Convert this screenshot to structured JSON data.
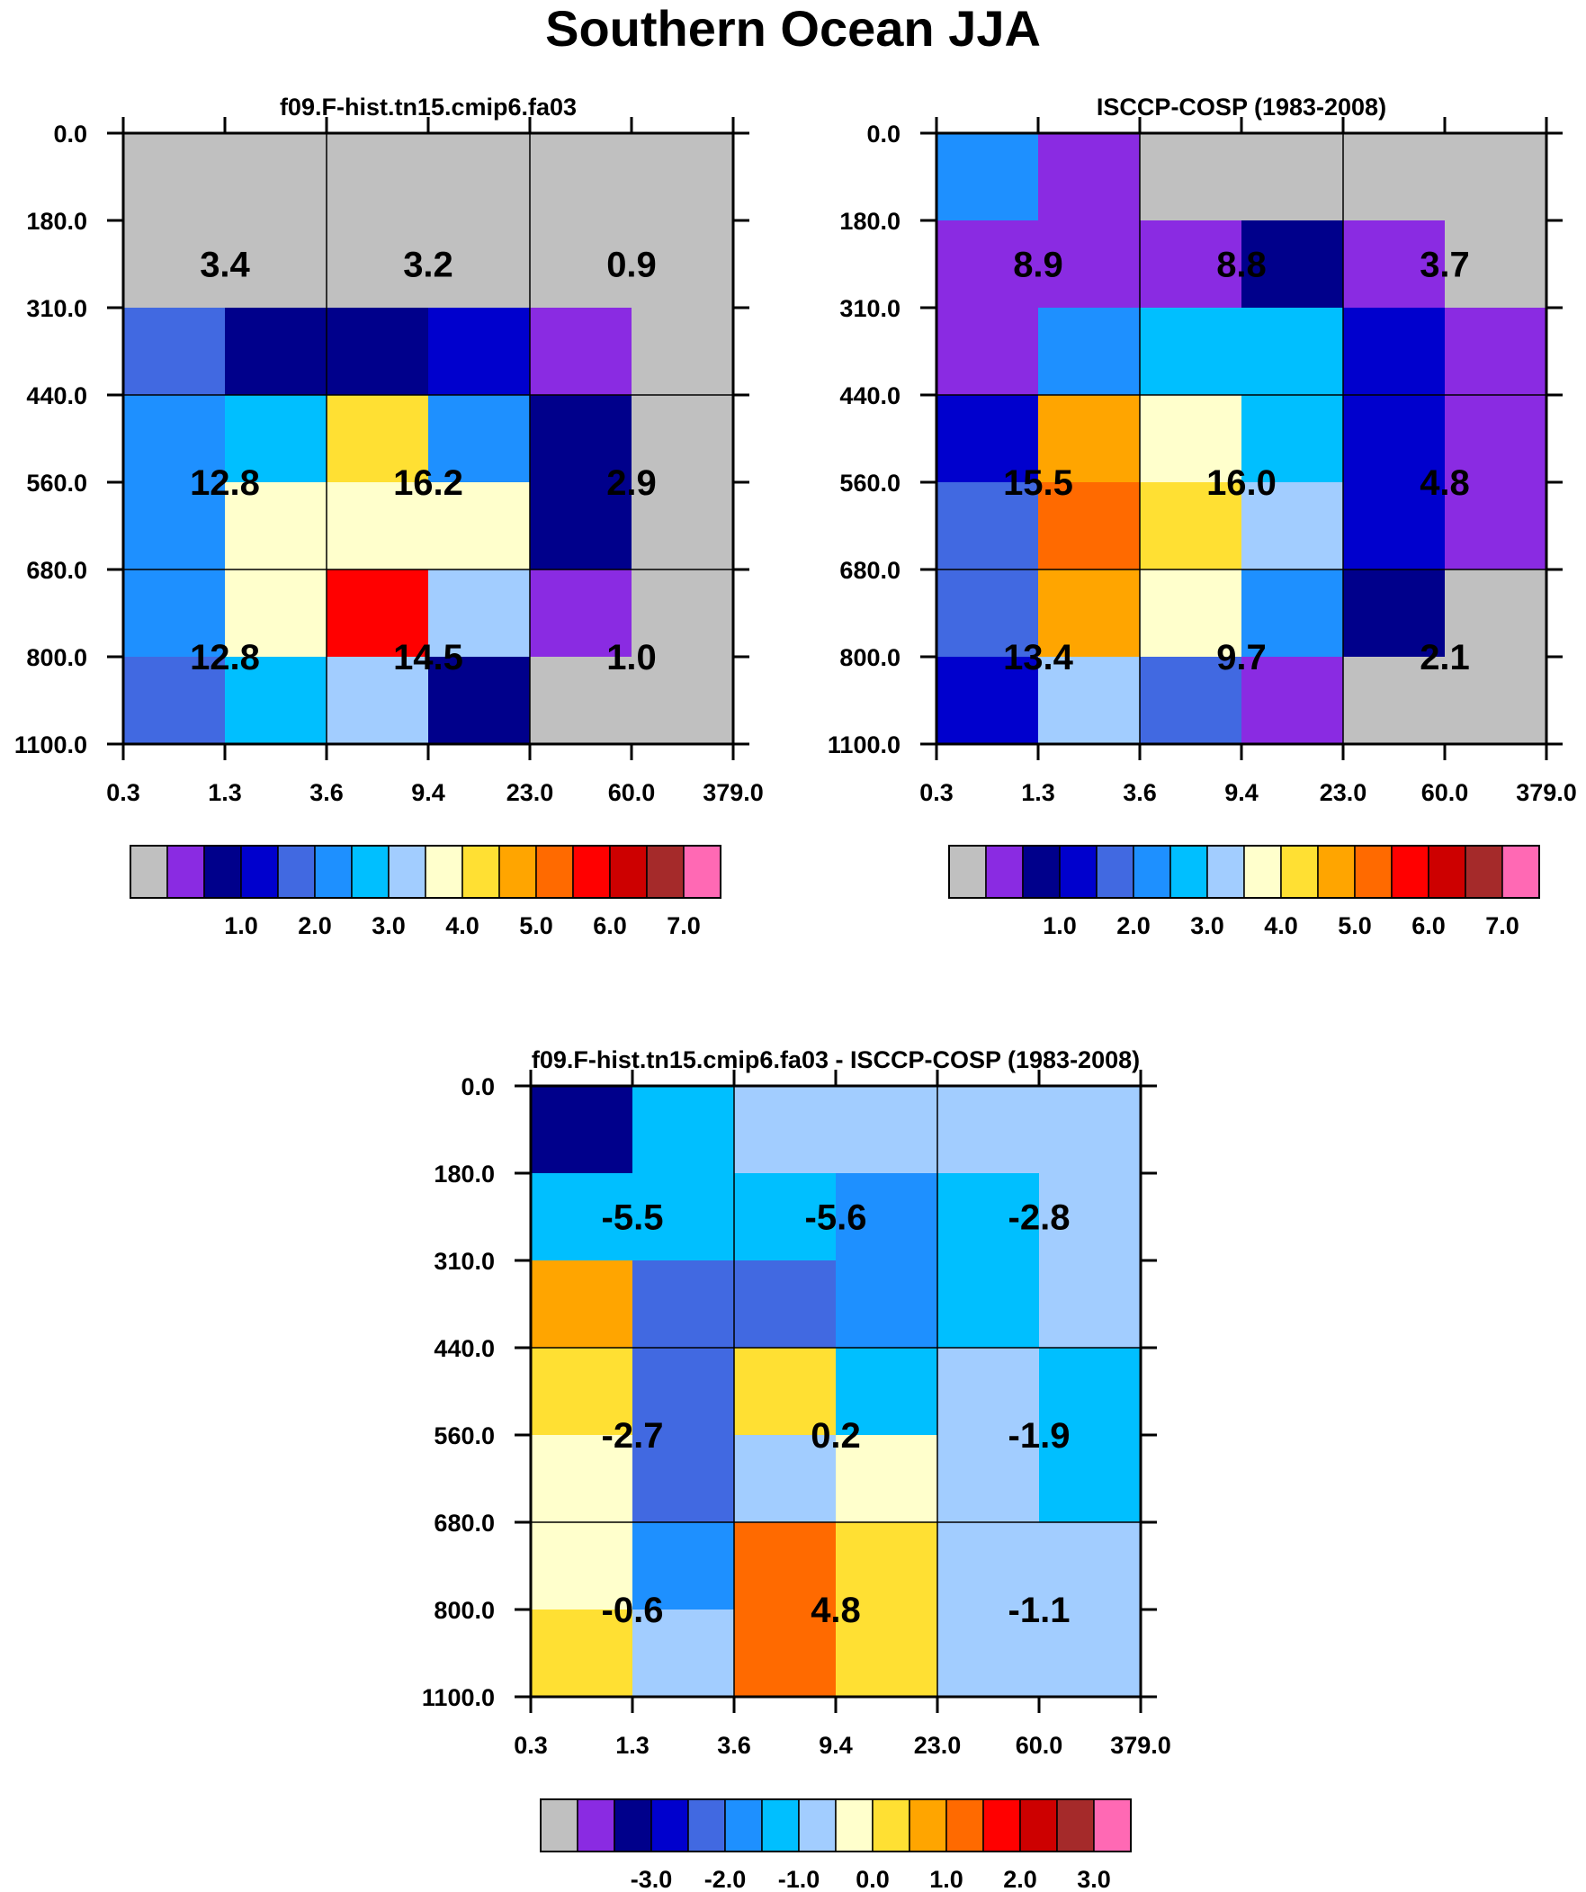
{
  "title": "Southern Ocean JJA",
  "colors": {
    "palette": [
      "#c0c0c0",
      "#8a2be2",
      "#00008b",
      "#0000cd",
      "#4169e1",
      "#1e90ff",
      "#00bfff",
      "#a2cdff",
      "#ffffcc",
      "#ffe033",
      "#ffa500",
      "#ff6a00",
      "#ff0000",
      "#cd0000",
      "#a52a2a",
      "#ff69b4"
    ]
  },
  "chart_data": [
    {
      "type": "heatmap",
      "title": "f09.F-hist.tn15.cmip6.fa03",
      "x_ticks": [
        "0.3",
        "1.3",
        "3.6",
        "9.4",
        "23.0",
        "60.0",
        "379.0"
      ],
      "y_ticks": [
        "0.0",
        "180.0",
        "310.0",
        "440.0",
        "560.0",
        "680.0",
        "800.0",
        "1100.0"
      ],
      "cell_color_index": [
        [
          0,
          0,
          0,
          0,
          0,
          0
        ],
        [
          0,
          0,
          0,
          0,
          0,
          0
        ],
        [
          4,
          2,
          2,
          3,
          1,
          0
        ],
        [
          5,
          6,
          9,
          5,
          2,
          0
        ],
        [
          5,
          8,
          8,
          8,
          2,
          0
        ],
        [
          5,
          8,
          12,
          7,
          1,
          0
        ],
        [
          4,
          6,
          7,
          2,
          0,
          0
        ]
      ],
      "annotations": [
        {
          "row": 0,
          "col": 0,
          "text": "3.4"
        },
        {
          "row": 0,
          "col": 1,
          "text": "3.2"
        },
        {
          "row": 0,
          "col": 2,
          "text": "0.9"
        },
        {
          "row": 1,
          "col": 0,
          "text": "12.8"
        },
        {
          "row": 1,
          "col": 1,
          "text": "16.2"
        },
        {
          "row": 1,
          "col": 2,
          "text": "2.9"
        },
        {
          "row": 2,
          "col": 0,
          "text": "12.8"
        },
        {
          "row": 2,
          "col": 1,
          "text": "14.5"
        },
        {
          "row": 2,
          "col": 2,
          "text": "1.0"
        }
      ],
      "colorbar_labels": [
        "1.0",
        "2.0",
        "3.0",
        "4.0",
        "5.0",
        "6.0",
        "7.0"
      ]
    },
    {
      "type": "heatmap",
      "title": "ISCCP-COSP (1983-2008)",
      "x_ticks": [
        "0.3",
        "1.3",
        "3.6",
        "9.4",
        "23.0",
        "60.0",
        "379.0"
      ],
      "y_ticks": [
        "0.0",
        "180.0",
        "310.0",
        "440.0",
        "560.0",
        "680.0",
        "800.0",
        "1100.0"
      ],
      "cell_color_index": [
        [
          5,
          1,
          0,
          0,
          0,
          0
        ],
        [
          1,
          1,
          1,
          2,
          1,
          0
        ],
        [
          1,
          5,
          6,
          6,
          3,
          1
        ],
        [
          3,
          10,
          8,
          6,
          3,
          1
        ],
        [
          4,
          11,
          9,
          7,
          3,
          1
        ],
        [
          4,
          10,
          8,
          5,
          2,
          0
        ],
        [
          3,
          7,
          4,
          1,
          0,
          0
        ]
      ],
      "annotations": [
        {
          "row": 0,
          "col": 0,
          "text": "8.9"
        },
        {
          "row": 0,
          "col": 1,
          "text": "8.8"
        },
        {
          "row": 0,
          "col": 2,
          "text": "3.7"
        },
        {
          "row": 1,
          "col": 0,
          "text": "15.5"
        },
        {
          "row": 1,
          "col": 1,
          "text": "16.0"
        },
        {
          "row": 1,
          "col": 2,
          "text": "4.8"
        },
        {
          "row": 2,
          "col": 0,
          "text": "13.4"
        },
        {
          "row": 2,
          "col": 1,
          "text": "9.7"
        },
        {
          "row": 2,
          "col": 2,
          "text": "2.1"
        }
      ],
      "colorbar_labels": [
        "1.0",
        "2.0",
        "3.0",
        "4.0",
        "5.0",
        "6.0",
        "7.0"
      ]
    },
    {
      "type": "heatmap",
      "title": "f09.F-hist.tn15.cmip6.fa03 - ISCCP-COSP (1983-2008)",
      "x_ticks": [
        "0.3",
        "1.3",
        "3.6",
        "9.4",
        "23.0",
        "60.0",
        "379.0"
      ],
      "y_ticks": [
        "0.0",
        "180.0",
        "310.0",
        "440.0",
        "560.0",
        "680.0",
        "800.0",
        "1100.0"
      ],
      "cell_color_index": [
        [
          2,
          6,
          7,
          7,
          7,
          7
        ],
        [
          6,
          6,
          6,
          5,
          6,
          7
        ],
        [
          10,
          4,
          4,
          5,
          6,
          7
        ],
        [
          9,
          4,
          9,
          6,
          7,
          6
        ],
        [
          8,
          4,
          7,
          8,
          7,
          6
        ],
        [
          8,
          5,
          11,
          9,
          7,
          7
        ],
        [
          9,
          7,
          11,
          9,
          7,
          7
        ]
      ],
      "annotations": [
        {
          "row": 0,
          "col": 0,
          "text": "-5.5"
        },
        {
          "row": 0,
          "col": 1,
          "text": "-5.6"
        },
        {
          "row": 0,
          "col": 2,
          "text": "-2.8"
        },
        {
          "row": 1,
          "col": 0,
          "text": "-2.7"
        },
        {
          "row": 1,
          "col": 1,
          "text": "0.2"
        },
        {
          "row": 1,
          "col": 2,
          "text": "-1.9"
        },
        {
          "row": 2,
          "col": 0,
          "text": "-0.6"
        },
        {
          "row": 2,
          "col": 1,
          "text": "4.8"
        },
        {
          "row": 2,
          "col": 2,
          "text": "-1.1"
        }
      ],
      "colorbar_labels": [
        "-3.0",
        "-2.0",
        "-1.0",
        "0.0",
        "1.0",
        "2.0",
        "3.0"
      ]
    }
  ]
}
